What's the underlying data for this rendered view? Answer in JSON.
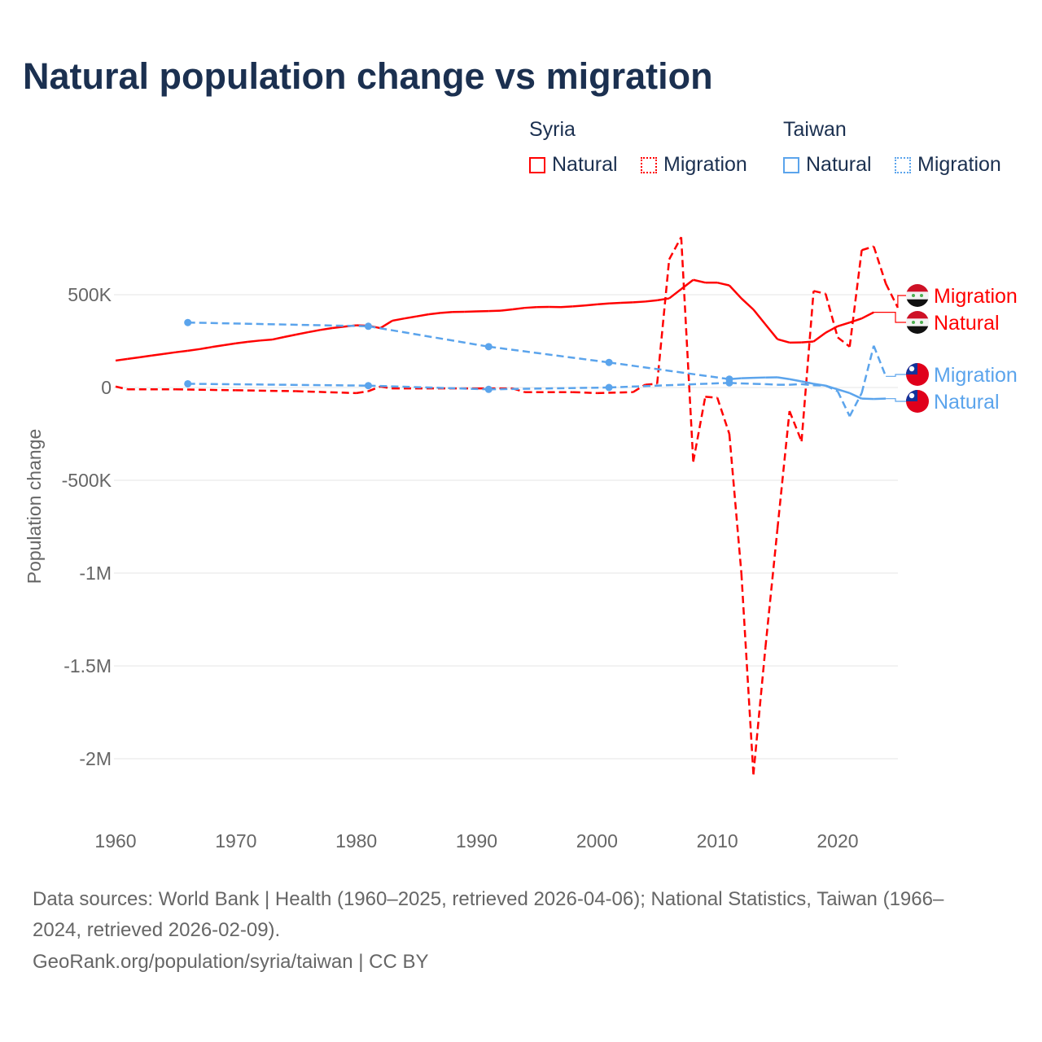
{
  "title": "Natural population change vs migration",
  "legend": {
    "groups": [
      {
        "name": "Syria",
        "color": "#ff0000",
        "items": [
          "Natural",
          "Migration"
        ]
      },
      {
        "name": "Taiwan",
        "color": "#5ba4ec",
        "items": [
          "Natural",
          "Migration"
        ]
      }
    ]
  },
  "footer": {
    "line1": "Data sources: World Bank | Health (1960–2025, retrieved 2026-04-06); National Statistics, Taiwan (1966–",
    "line2": "2024, retrieved 2026-02-09).",
    "line3": "GeoRank.org/population/syria/taiwan | CC BY"
  },
  "chart_data": {
    "type": "line",
    "title": "Natural population change vs migration",
    "xlabel": "",
    "ylabel": "Population change",
    "xlim": [
      1960,
      2025
    ],
    "ylim": [
      -2250000,
      800000
    ],
    "xticks": [
      1960,
      1970,
      1980,
      1990,
      2000,
      2010,
      2020
    ],
    "yticks": [
      {
        "v": 500000,
        "label": "500K"
      },
      {
        "v": 0,
        "label": "0"
      },
      {
        "v": -500000,
        "label": "-500K"
      },
      {
        "v": -1000000,
        "label": "-1M"
      },
      {
        "v": -1500000,
        "label": "-1.5M"
      },
      {
        "v": -2000000,
        "label": "-2M"
      }
    ],
    "grid": true,
    "series": [
      {
        "name": "Syria Natural",
        "label": "Natural",
        "color": "#ff0000",
        "style": "solid",
        "country": "syria",
        "x": [
          1960,
          1961,
          1962,
          1963,
          1964,
          1965,
          1966,
          1967,
          1968,
          1969,
          1970,
          1971,
          1972,
          1973,
          1974,
          1975,
          1976,
          1977,
          1978,
          1979,
          1980,
          1981,
          1982,
          1983,
          1984,
          1985,
          1986,
          1987,
          1988,
          1989,
          1990,
          1991,
          1992,
          1993,
          1994,
          1995,
          1996,
          1997,
          1998,
          1999,
          2000,
          2001,
          2002,
          2003,
          2004,
          2005,
          2006,
          2007,
          2008,
          2009,
          2010,
          2011,
          2012,
          2013,
          2014,
          2015,
          2016,
          2017,
          2018,
          2019,
          2020,
          2021,
          2022,
          2023
        ],
        "y": [
          145,
          154,
          163,
          172,
          181,
          190,
          198,
          207,
          218,
          228,
          238,
          246,
          253,
          258,
          272,
          285,
          298,
          310,
          320,
          328,
          335,
          333,
          320,
          360,
          372,
          383,
          394,
          402,
          407,
          408,
          410,
          412,
          414,
          421,
          429,
          433,
          434,
          433,
          437,
          442,
          448,
          453,
          456,
          459,
          463,
          470,
          480,
          530,
          580,
          565,
          565,
          550,
          480,
          420,
          340,
          260,
          242,
          243,
          248,
          295,
          330,
          350,
          372,
          405
        ],
        "unit": 1000
      },
      {
        "name": "Syria Migration",
        "label": "Migration",
        "color": "#ff0000",
        "style": "dashed",
        "country": "syria",
        "x": [
          1960,
          1961,
          1965,
          1970,
          1975,
          1980,
          1981,
          1982,
          1983,
          1990,
          1993,
          1994,
          1998,
          2000,
          2003,
          2004,
          2005,
          2006,
          2007,
          2008,
          2009,
          2010,
          2011,
          2012,
          2013,
          2014,
          2015,
          2016,
          2017,
          2018,
          2019,
          2020,
          2021,
          2022,
          2023,
          2024,
          2025
        ],
        "y": [
          5,
          -10,
          -10,
          -15,
          -20,
          -30,
          -20,
          5,
          -5,
          -5,
          -5,
          -25,
          -25,
          -30,
          -25,
          15,
          20,
          690,
          810,
          -400,
          -50,
          -55,
          -250,
          -1000,
          -2085,
          -1400,
          -760,
          -127,
          -290,
          520,
          505,
          270,
          220,
          740,
          760,
          560,
          430
        ],
        "unit": 1000
      },
      {
        "name": "Taiwan Natural",
        "label": "Natural",
        "color": "#5ba4ec",
        "style": "solid",
        "country": "taiwan",
        "x": [
          1966,
          1981,
          1991,
          2001,
          2011,
          2012,
          2013,
          2014,
          2015,
          2016,
          2017,
          2018,
          2019,
          2020,
          2021,
          2022,
          2023,
          2024
        ],
        "y": [
          350,
          330,
          220,
          135,
          45,
          50,
          52,
          54,
          55,
          45,
          33,
          20,
          10,
          -10,
          -30,
          -60,
          -62,
          -60
        ],
        "unit": 1000
      },
      {
        "name": "Taiwan Migration",
        "label": "Migration",
        "color": "#5ba4ec",
        "style": "dashed",
        "country": "taiwan",
        "x": [
          1966,
          1981,
          1991,
          2001,
          2011,
          2012,
          2013,
          2014,
          2015,
          2016,
          2017,
          2018,
          2019,
          2020,
          2021,
          2022,
          2023,
          2024
        ],
        "y": [
          20,
          10,
          -10,
          0,
          25,
          22,
          20,
          18,
          15,
          15,
          18,
          12,
          10,
          -20,
          -155,
          -30,
          225,
          60
        ],
        "unit": 1000
      }
    ]
  }
}
